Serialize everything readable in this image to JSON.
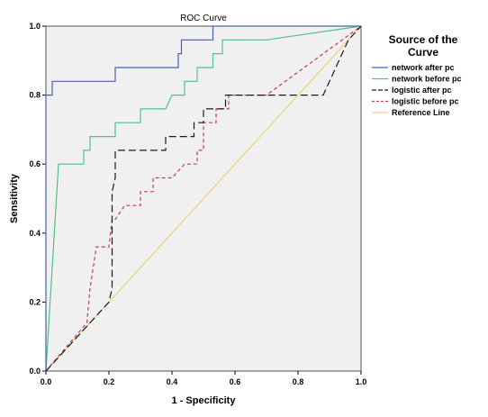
{
  "chart_data": {
    "type": "line",
    "title": "ROC Curve",
    "xlabel": "1 - Specificity",
    "ylabel": "Sensitivity",
    "xlim": [
      0.0,
      1.0
    ],
    "ylim": [
      0.0,
      1.0
    ],
    "x_ticks": [
      "0.0",
      "0.2",
      "0.4",
      "0.6",
      "0.8",
      "1.0"
    ],
    "y_ticks": [
      "0.0",
      "0.2",
      "0.4",
      "0.6",
      "0.8",
      "1.0"
    ],
    "legend_title": "Source of the Curve",
    "legend_position": "right",
    "grid": false,
    "plot_background": "#f0f0f0",
    "series": [
      {
        "name": "network after pc",
        "color": "#4a5fb0",
        "dash": "solid",
        "points": [
          [
            0,
            0
          ],
          [
            0,
            0.72
          ],
          [
            0,
            0.8
          ],
          [
            0.02,
            0.8
          ],
          [
            0.02,
            0.84
          ],
          [
            0.22,
            0.84
          ],
          [
            0.22,
            0.88
          ],
          [
            0.32,
            0.88
          ],
          [
            0.42,
            0.88
          ],
          [
            0.42,
            0.92
          ],
          [
            0.43,
            0.92
          ],
          [
            0.43,
            0.96
          ],
          [
            0.53,
            0.96
          ],
          [
            0.53,
            1.0
          ],
          [
            1,
            1
          ]
        ]
      },
      {
        "name": "network before pc",
        "color": "#52c08a",
        "dash": "solid",
        "points": [
          [
            0,
            0
          ],
          [
            0.04,
            0.6
          ],
          [
            0.12,
            0.6
          ],
          [
            0.12,
            0.64
          ],
          [
            0.14,
            0.64
          ],
          [
            0.14,
            0.68
          ],
          [
            0.22,
            0.68
          ],
          [
            0.22,
            0.72
          ],
          [
            0.3,
            0.72
          ],
          [
            0.3,
            0.76
          ],
          [
            0.38,
            0.76
          ],
          [
            0.4,
            0.8
          ],
          [
            0.44,
            0.8
          ],
          [
            0.44,
            0.84
          ],
          [
            0.48,
            0.84
          ],
          [
            0.48,
            0.88
          ],
          [
            0.53,
            0.88
          ],
          [
            0.53,
            0.92
          ],
          [
            0.56,
            0.92
          ],
          [
            0.56,
            0.96
          ],
          [
            0.7,
            0.96
          ],
          [
            1,
            1
          ]
        ]
      },
      {
        "name": "logistic after pc",
        "color": "#1a1a1a",
        "dash": "8,4",
        "points": [
          [
            0,
            0
          ],
          [
            0.2,
            0.2
          ],
          [
            0.21,
            0.24
          ],
          [
            0.21,
            0.52
          ],
          [
            0.22,
            0.56
          ],
          [
            0.22,
            0.64
          ],
          [
            0.38,
            0.64
          ],
          [
            0.38,
            0.68
          ],
          [
            0.47,
            0.68
          ],
          [
            0.47,
            0.72
          ],
          [
            0.5,
            0.72
          ],
          [
            0.5,
            0.76
          ],
          [
            0.57,
            0.76
          ],
          [
            0.57,
            0.8
          ],
          [
            0.72,
            0.8
          ],
          [
            0.88,
            0.8
          ],
          [
            0.96,
            0.96
          ],
          [
            1,
            1
          ]
        ]
      },
      {
        "name": "logistic before pc",
        "color": "#c0405c",
        "dash": "4,3",
        "points": [
          [
            0,
            0
          ],
          [
            0.13,
            0.14
          ],
          [
            0.14,
            0.24
          ],
          [
            0.16,
            0.36
          ],
          [
            0.2,
            0.36
          ],
          [
            0.21,
            0.44
          ],
          [
            0.22,
            0.44
          ],
          [
            0.25,
            0.48
          ],
          [
            0.3,
            0.48
          ],
          [
            0.3,
            0.52
          ],
          [
            0.34,
            0.52
          ],
          [
            0.34,
            0.56
          ],
          [
            0.4,
            0.56
          ],
          [
            0.44,
            0.6
          ],
          [
            0.48,
            0.6
          ],
          [
            0.48,
            0.64
          ],
          [
            0.5,
            0.64
          ],
          [
            0.5,
            0.72
          ],
          [
            0.54,
            0.72
          ],
          [
            0.54,
            0.76
          ],
          [
            0.58,
            0.76
          ],
          [
            0.58,
            0.8
          ],
          [
            0.7,
            0.8
          ],
          [
            1,
            1
          ]
        ]
      },
      {
        "name": "Reference Line",
        "color": "#e8d37a",
        "dash": "solid",
        "points": [
          [
            0,
            0
          ],
          [
            1,
            1
          ]
        ]
      }
    ]
  }
}
